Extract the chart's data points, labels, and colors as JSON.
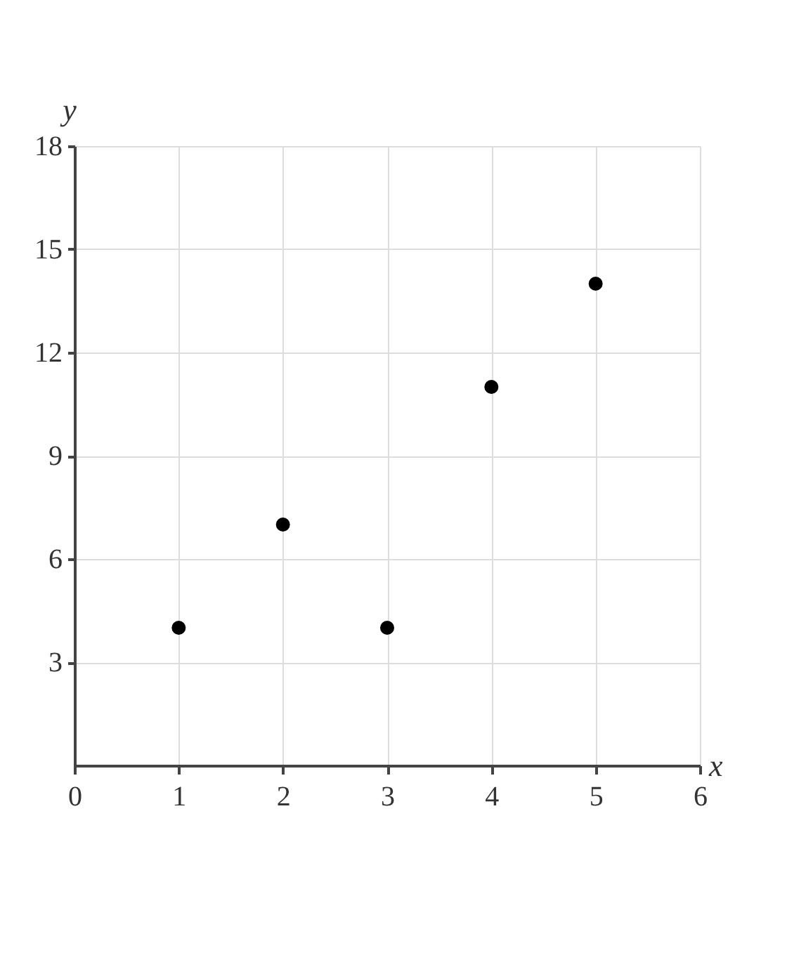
{
  "chart_data": {
    "type": "scatter",
    "xlabel": "x",
    "ylabel": "y",
    "x": [
      1,
      2,
      3,
      4,
      5
    ],
    "series": [
      {
        "color": "#000000",
        "values": [
          4,
          7,
          4,
          11,
          14
        ]
      }
    ],
    "xlim": [
      0,
      6
    ],
    "xticks": [
      0,
      1,
      2,
      3,
      4,
      5,
      6
    ],
    "ylim": [
      0,
      18
    ],
    "yticks": [
      3,
      6,
      9,
      12,
      15,
      18
    ],
    "grid": true,
    "marker": "circle"
  }
}
